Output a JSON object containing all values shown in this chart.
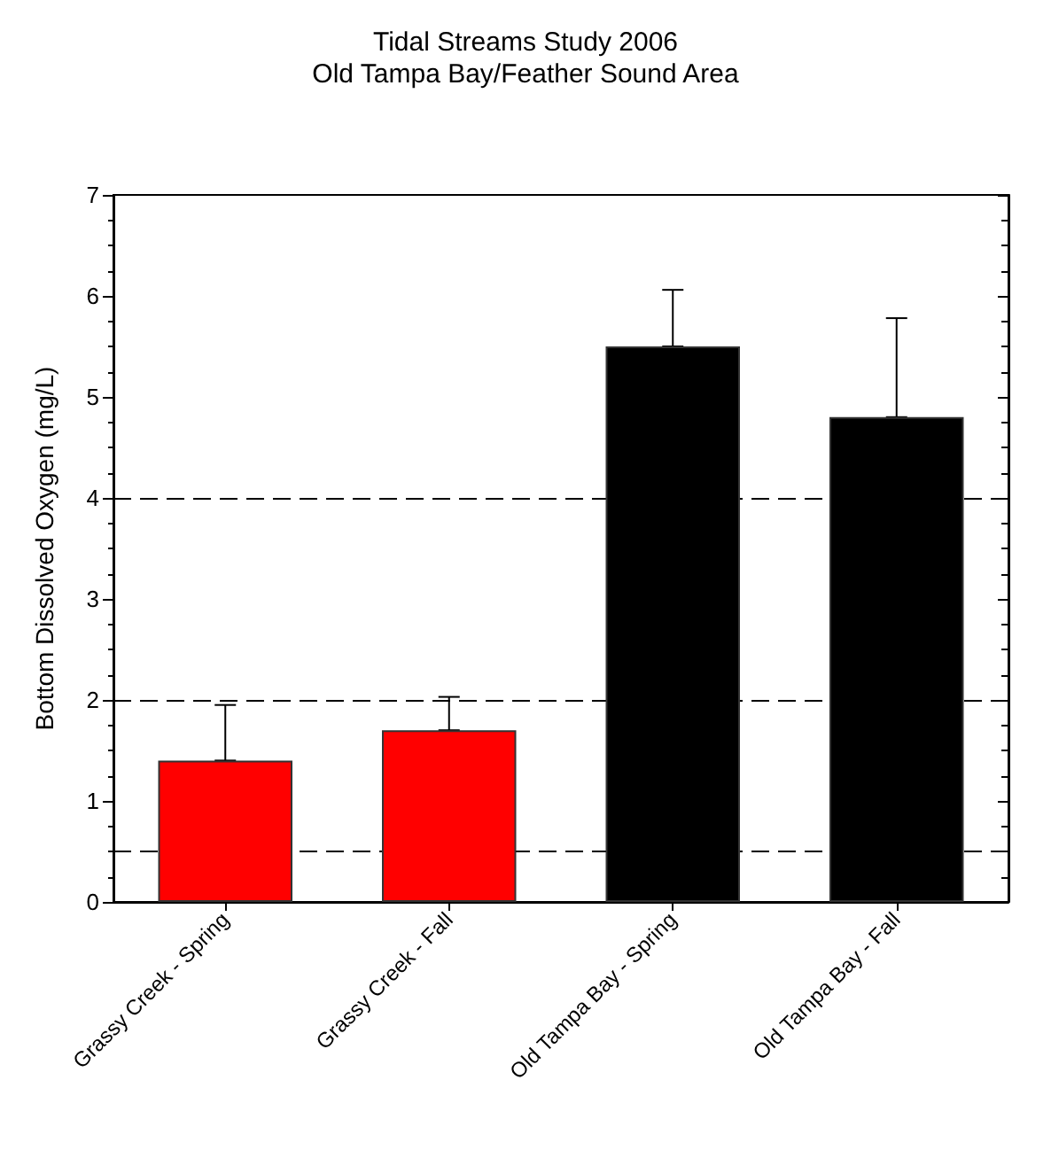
{
  "chart_data": {
    "type": "bar",
    "title": "Tidal Streams Study 2006\nOld Tampa Bay/Feather Sound Area",
    "ylabel": "Bottom Dissolved Oxygen (mg/L)",
    "categories": [
      "Grassy Creek - Spring",
      "Grassy Creek - Fall",
      "Old Tampa Bay - Spring",
      "Old Tampa Bay - Fall"
    ],
    "values": [
      1.4,
      1.7,
      5.5,
      4.8
    ],
    "colors": [
      "#ff0000",
      "#ff0000",
      "#000000",
      "#000000"
    ],
    "errors": [
      [
        1.4,
        1.95
      ],
      [
        1.7,
        2.03
      ],
      [
        5.5,
        6.06
      ],
      [
        4.8,
        5.78
      ]
    ],
    "ylim": [
      0,
      7
    ],
    "yticks": [
      0,
      1,
      2,
      3,
      4,
      5,
      6,
      7
    ],
    "ref_lines": [
      {
        "axis": "y",
        "value": 0.5,
        "label": null,
        "color": "#000000",
        "line_style": "dashed"
      },
      {
        "axis": "y",
        "value": 2,
        "label": null,
        "color": "#000000",
        "line_style": "dashed"
      },
      {
        "axis": "y",
        "value": 4,
        "label": null,
        "color": "#000000",
        "line_style": "dashed"
      }
    ],
    "grid": false
  }
}
